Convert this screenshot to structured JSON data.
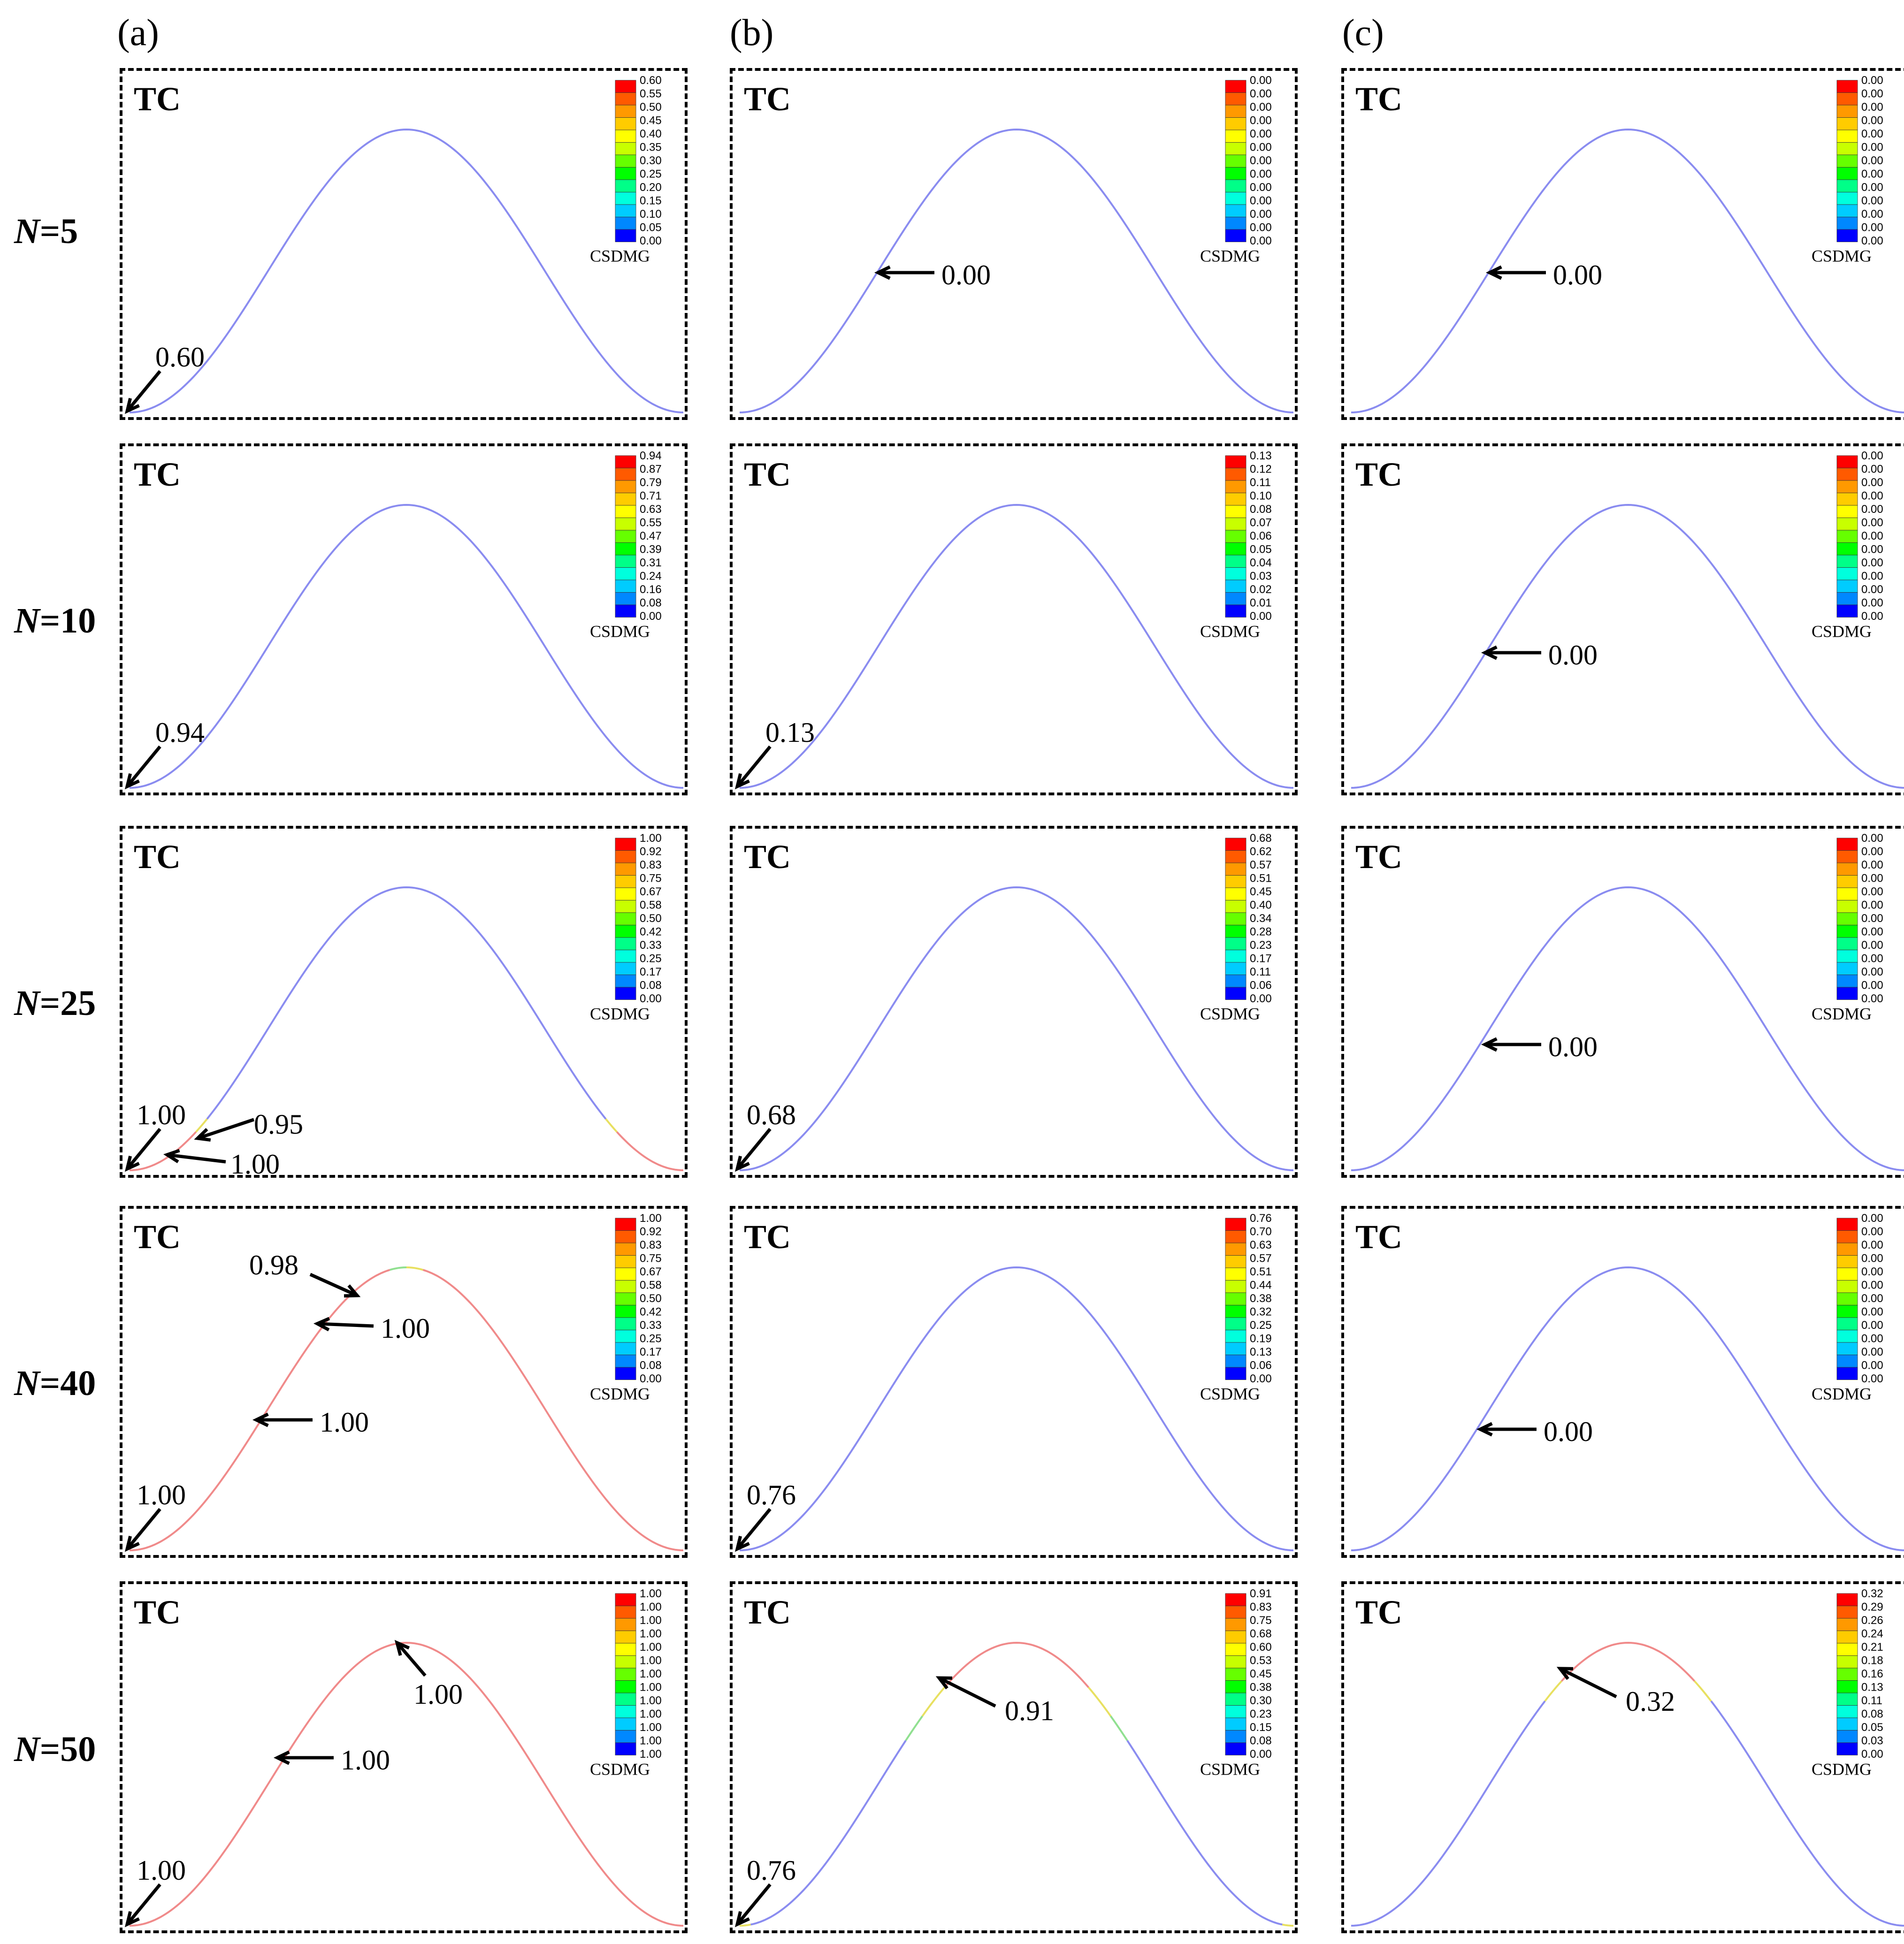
{
  "columns": [
    "(a)",
    "(b)",
    "(c)"
  ],
  "rows": [
    {
      "prefix": "N",
      "value": "=5"
    },
    {
      "prefix": "N",
      "value": "=10"
    },
    {
      "prefix": "N",
      "value": "=25"
    },
    {
      "prefix": "N",
      "value": "=40"
    },
    {
      "prefix": "N",
      "value": "=50"
    }
  ],
  "panel_title": "TC",
  "legend_title": "CSDMG",
  "colors": {
    "curve_blue": "#8a8cf0",
    "curve_red": "#f08a8a",
    "curve_yellow": "#e8e060",
    "curve_green": "#90e090",
    "scale": [
      "#ff0000",
      "#ff5a00",
      "#ff9900",
      "#ffcc00",
      "#ffff00",
      "#c8ff00",
      "#66ff00",
      "#00ff00",
      "#00ff88",
      "#00ffdd",
      "#00ccff",
      "#0088ff",
      "#0000ff"
    ]
  },
  "panels": [
    [
      {
        "scale": [
          "0.60",
          "0.55",
          "0.50",
          "0.45",
          "0.40",
          "0.35",
          "0.30",
          "0.25",
          "0.20",
          "0.15",
          "0.10",
          "0.05",
          "0.00"
        ],
        "curve": "blue",
        "annotations": [
          {
            "text": "0.60"
          }
        ]
      },
      {
        "scale": [
          "0.00",
          "0.00",
          "0.00",
          "0.00",
          "0.00",
          "0.00",
          "0.00",
          "0.00",
          "0.00",
          "0.00",
          "0.00",
          "0.00",
          "0.00"
        ],
        "curve": "blue",
        "annotations": [
          {
            "text": "0.00"
          }
        ]
      },
      {
        "scale": [
          "0.00",
          "0.00",
          "0.00",
          "0.00",
          "0.00",
          "0.00",
          "0.00",
          "0.00",
          "0.00",
          "0.00",
          "0.00",
          "0.00",
          "0.00"
        ],
        "curve": "blue",
        "annotations": [
          {
            "text": "0.00"
          }
        ]
      }
    ],
    [
      {
        "scale": [
          "0.94",
          "0.87",
          "0.79",
          "0.71",
          "0.63",
          "0.55",
          "0.47",
          "0.39",
          "0.31",
          "0.24",
          "0.16",
          "0.08",
          "0.00"
        ],
        "curve": "blue",
        "annotations": [
          {
            "text": "0.94"
          }
        ]
      },
      {
        "scale": [
          "0.13",
          "0.12",
          "0.11",
          "0.10",
          "0.08",
          "0.07",
          "0.06",
          "0.05",
          "0.04",
          "0.03",
          "0.02",
          "0.01",
          "0.00"
        ],
        "curve": "blue",
        "annotations": [
          {
            "text": "0.13"
          }
        ]
      },
      {
        "scale": [
          "0.00",
          "0.00",
          "0.00",
          "0.00",
          "0.00",
          "0.00",
          "0.00",
          "0.00",
          "0.00",
          "0.00",
          "0.00",
          "0.00",
          "0.00"
        ],
        "curve": "blue",
        "annotations": [
          {
            "text": "0.00"
          }
        ]
      }
    ],
    [
      {
        "scale": [
          "1.00",
          "0.92",
          "0.83",
          "0.75",
          "0.67",
          "0.58",
          "0.50",
          "0.42",
          "0.33",
          "0.25",
          "0.17",
          "0.08",
          "0.00"
        ],
        "curve": "blue-red-base",
        "annotations": [
          {
            "text": "1.00"
          },
          {
            "text": "0.95"
          },
          {
            "text": "1.00"
          }
        ]
      },
      {
        "scale": [
          "0.68",
          "0.62",
          "0.57",
          "0.51",
          "0.45",
          "0.40",
          "0.34",
          "0.28",
          "0.23",
          "0.17",
          "0.11",
          "0.06",
          "0.00"
        ],
        "curve": "blue",
        "annotations": [
          {
            "text": "0.68"
          }
        ]
      },
      {
        "scale": [
          "0.00",
          "0.00",
          "0.00",
          "0.00",
          "0.00",
          "0.00",
          "0.00",
          "0.00",
          "0.00",
          "0.00",
          "0.00",
          "0.00",
          "0.00"
        ],
        "curve": "blue",
        "annotations": [
          {
            "text": "0.00"
          }
        ]
      }
    ],
    [
      {
        "scale": [
          "1.00",
          "0.92",
          "0.83",
          "0.75",
          "0.67",
          "0.58",
          "0.50",
          "0.42",
          "0.33",
          "0.25",
          "0.17",
          "0.08",
          "0.00"
        ],
        "curve": "red",
        "annotations": [
          {
            "text": "0.98"
          },
          {
            "text": "1.00"
          },
          {
            "text": "1.00"
          },
          {
            "text": "1.00"
          }
        ]
      },
      {
        "scale": [
          "0.76",
          "0.70",
          "0.63",
          "0.57",
          "0.51",
          "0.44",
          "0.38",
          "0.32",
          "0.25",
          "0.19",
          "0.13",
          "0.06",
          "0.00"
        ],
        "curve": "blue",
        "annotations": [
          {
            "text": "0.76"
          }
        ]
      },
      {
        "scale": [
          "0.00",
          "0.00",
          "0.00",
          "0.00",
          "0.00",
          "0.00",
          "0.00",
          "0.00",
          "0.00",
          "0.00",
          "0.00",
          "0.00",
          "0.00"
        ],
        "curve": "blue",
        "annotations": [
          {
            "text": "0.00"
          }
        ]
      }
    ],
    [
      {
        "scale": [
          "1.00",
          "1.00",
          "1.00",
          "1.00",
          "1.00",
          "1.00",
          "1.00",
          "1.00",
          "1.00",
          "1.00",
          "1.00",
          "1.00",
          "1.00"
        ],
        "curve": "red-full",
        "annotations": [
          {
            "text": "1.00"
          },
          {
            "text": "1.00"
          },
          {
            "text": "1.00"
          }
        ]
      },
      {
        "scale": [
          "0.91",
          "0.83",
          "0.75",
          "0.68",
          "0.60",
          "0.53",
          "0.45",
          "0.38",
          "0.30",
          "0.23",
          "0.15",
          "0.08",
          "0.00"
        ],
        "curve": "red-mid",
        "annotations": [
          {
            "text": "0.91"
          },
          {
            "text": "0.76"
          }
        ]
      },
      {
        "scale": [
          "0.32",
          "0.29",
          "0.26",
          "0.24",
          "0.21",
          "0.18",
          "0.16",
          "0.13",
          "0.11",
          "0.08",
          "0.05",
          "0.03",
          "0.00"
        ],
        "curve": "red-top",
        "annotations": [
          {
            "text": "0.32"
          }
        ]
      }
    ]
  ]
}
